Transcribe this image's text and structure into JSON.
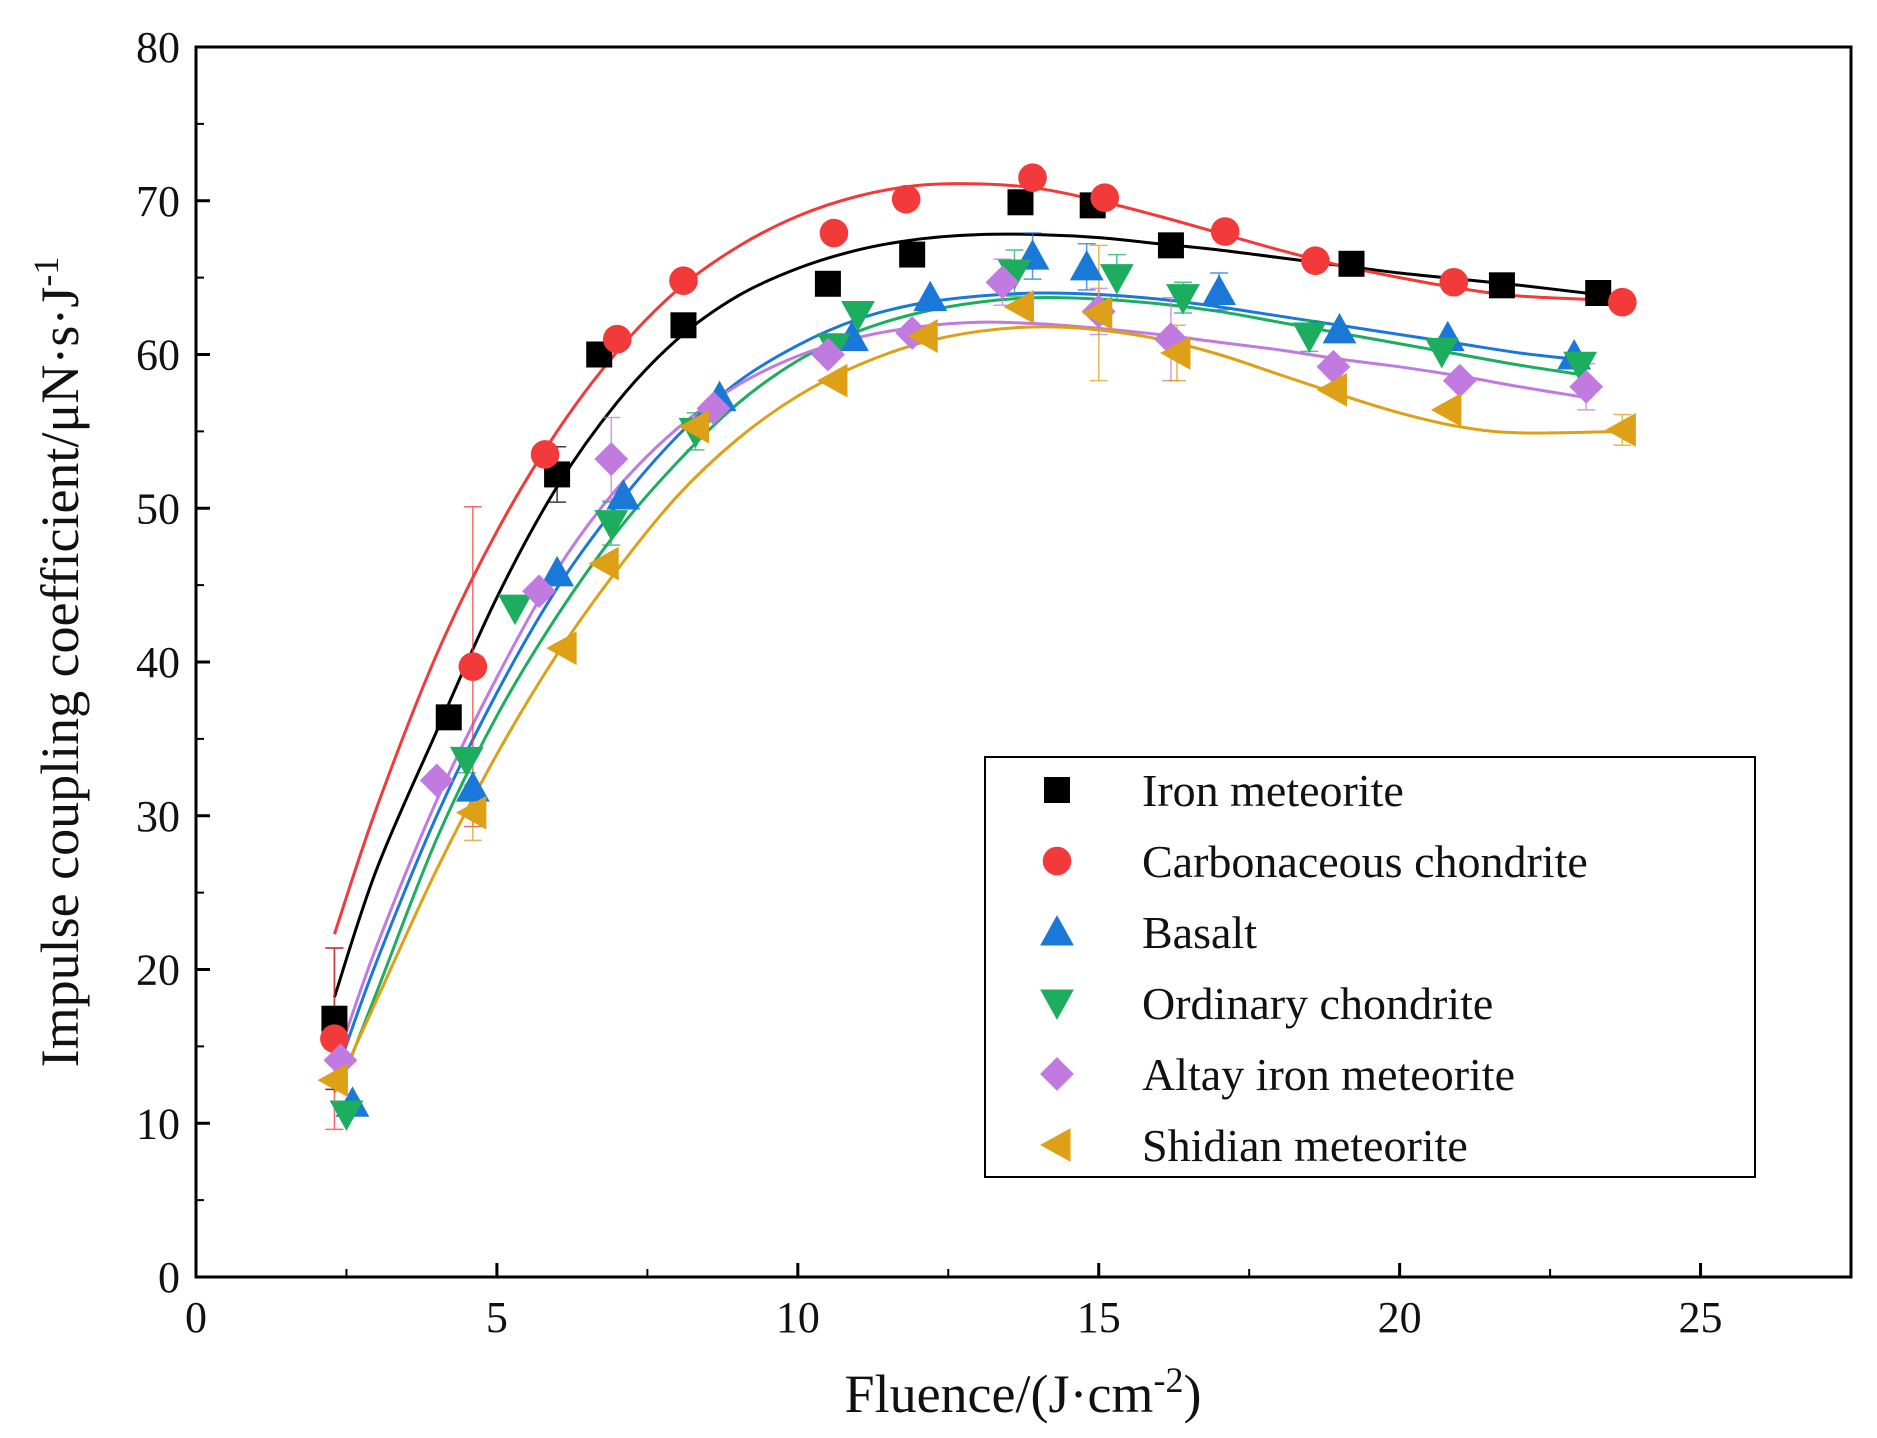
{
  "chart_data": {
    "type": "scatter",
    "title": "",
    "xlabel": "Fluence/(J·cm",
    "xlabel_sup": "-2",
    "xlabel_end": ")",
    "ylabel": "Impulse coupling coefficient/μN·s·J",
    "ylabel_sup": "-1",
    "xlim": [
      0,
      27.5
    ],
    "ylim": [
      0,
      80
    ],
    "xticks": [
      0,
      5,
      10,
      15,
      20,
      25
    ],
    "yticks": [
      0,
      10,
      20,
      30,
      40,
      50,
      60,
      70,
      80
    ],
    "legend_position": "bottom-right",
    "series": [
      {
        "name": "Iron meteorite",
        "color": "#000000",
        "marker": "square",
        "x": [
          2.3,
          4.2,
          6.0,
          6.7,
          8.1,
          10.5,
          11.9,
          13.7,
          14.9,
          16.2,
          19.2,
          21.7,
          23.3
        ],
        "y": [
          16.8,
          36.4,
          52.2,
          60.0,
          61.9,
          64.6,
          66.5,
          69.9,
          69.7,
          67.1,
          65.9,
          64.5,
          64.0
        ],
        "err": [
          4.6,
          0,
          1.8,
          0,
          0,
          0,
          0,
          0,
          0,
          0,
          0,
          0,
          0
        ],
        "fit": [
          [
            2.3,
            18.2
          ],
          [
            3,
            26.5
          ],
          [
            4,
            35.5
          ],
          [
            5,
            44.2
          ],
          [
            6,
            51.4
          ],
          [
            7,
            56.9
          ],
          [
            8,
            61.0
          ],
          [
            9,
            63.8
          ],
          [
            10,
            65.6
          ],
          [
            11,
            66.8
          ],
          [
            12,
            67.5
          ],
          [
            13,
            67.8
          ],
          [
            14,
            67.8
          ],
          [
            15,
            67.6
          ],
          [
            16,
            67.2
          ],
          [
            17,
            66.8
          ],
          [
            18,
            66.3
          ],
          [
            19,
            65.8
          ],
          [
            20,
            65.3
          ],
          [
            21,
            64.9
          ],
          [
            22,
            64.5
          ],
          [
            23.3,
            63.9
          ]
        ]
      },
      {
        "name": "Carbonaceous chondrite",
        "color": "#f23a3a",
        "marker": "circle",
        "x": [
          2.3,
          4.6,
          5.8,
          7.0,
          8.1,
          10.6,
          11.8,
          13.9,
          15.1,
          17.1,
          18.6,
          20.9,
          23.7
        ],
        "y": [
          15.5,
          39.7,
          53.5,
          61.0,
          64.8,
          67.9,
          70.1,
          71.5,
          70.2,
          68.0,
          66.1,
          64.7,
          63.4
        ],
        "err": [
          5.9,
          10.4,
          0,
          0,
          0,
          0,
          0,
          0,
          0,
          0,
          0,
          0,
          0
        ],
        "fit": [
          [
            2.3,
            22.3
          ],
          [
            3,
            30.5
          ],
          [
            4,
            40.5
          ],
          [
            5,
            48.5
          ],
          [
            6,
            55.0
          ],
          [
            7,
            60.2
          ],
          [
            8,
            64.2
          ],
          [
            9,
            67.0
          ],
          [
            10,
            69.0
          ],
          [
            11,
            70.3
          ],
          [
            12,
            71.0
          ],
          [
            13,
            71.1
          ],
          [
            14,
            70.8
          ],
          [
            15,
            70.0
          ],
          [
            16,
            69.0
          ],
          [
            17,
            67.9
          ],
          [
            18,
            66.8
          ],
          [
            19,
            65.8
          ],
          [
            20,
            65.0
          ],
          [
            21,
            64.3
          ],
          [
            22,
            63.8
          ],
          [
            23.7,
            63.5
          ]
        ]
      },
      {
        "name": "Basalt",
        "color": "#1a78d8",
        "marker": "triangle-up",
        "x": [
          2.6,
          4.6,
          6.0,
          7.1,
          8.7,
          10.9,
          12.2,
          13.9,
          14.8,
          17.0,
          19.0,
          20.8,
          22.9
        ],
        "y": [
          11.3,
          31.8,
          45.8,
          50.8,
          57.2,
          61.1,
          63.7,
          66.4,
          65.7,
          64.1,
          61.6,
          61.1,
          59.9
        ],
        "err": [
          0,
          0,
          0,
          0,
          0,
          0,
          0,
          1.5,
          1.5,
          1.2,
          0,
          0,
          0
        ],
        "fit": [
          [
            2.4,
            14.0
          ],
          [
            3,
            20.5
          ],
          [
            4,
            30.0
          ],
          [
            5,
            38.0
          ],
          [
            6,
            44.8
          ],
          [
            7,
            50.2
          ],
          [
            8,
            54.7
          ],
          [
            9,
            58.2
          ],
          [
            10,
            60.6
          ],
          [
            11,
            62.3
          ],
          [
            12,
            63.3
          ],
          [
            13,
            63.8
          ],
          [
            14,
            64.0
          ],
          [
            15,
            63.9
          ],
          [
            16,
            63.6
          ],
          [
            17,
            63.1
          ],
          [
            18,
            62.5
          ],
          [
            19,
            61.9
          ],
          [
            20,
            61.3
          ],
          [
            21,
            60.7
          ],
          [
            22,
            60.1
          ],
          [
            22.9,
            59.7
          ]
        ]
      },
      {
        "name": "Ordinary chondrite",
        "color": "#1cae5e",
        "marker": "triangle-down",
        "x": [
          2.5,
          4.5,
          5.3,
          6.9,
          8.3,
          10.6,
          11.0,
          13.6,
          15.3,
          16.4,
          18.5,
          20.7,
          23.0
        ],
        "y": [
          10.6,
          33.6,
          43.5,
          49.0,
          55.0,
          60.5,
          62.6,
          65.3,
          65.0,
          63.7,
          61.2,
          60.2,
          59.3
        ],
        "err": [
          0,
          0.8,
          0,
          1.4,
          1.2,
          0,
          0,
          1.5,
          1.5,
          1.0,
          1.0,
          0,
          0
        ],
        "fit": [
          [
            2.4,
            12.5
          ],
          [
            3,
            18.5
          ],
          [
            4,
            28.5
          ],
          [
            5,
            36.5
          ],
          [
            6,
            43.0
          ],
          [
            7,
            48.5
          ],
          [
            8,
            53.0
          ],
          [
            9,
            56.8
          ],
          [
            10,
            59.6
          ],
          [
            11,
            61.5
          ],
          [
            12,
            62.7
          ],
          [
            13,
            63.4
          ],
          [
            14,
            63.7
          ],
          [
            15,
            63.6
          ],
          [
            16,
            63.3
          ],
          [
            17,
            62.8
          ],
          [
            18,
            62.1
          ],
          [
            19,
            61.4
          ],
          [
            20,
            60.7
          ],
          [
            21,
            60.0
          ],
          [
            22,
            59.3
          ],
          [
            23.0,
            58.7
          ]
        ]
      },
      {
        "name": "Altay iron meteorite",
        "color": "#c17ae0",
        "marker": "diamond",
        "x": [
          2.4,
          4.0,
          5.7,
          6.9,
          8.6,
          10.5,
          11.9,
          13.4,
          15.0,
          16.2,
          18.9,
          21.0,
          23.1
        ],
        "y": [
          14.1,
          32.3,
          44.6,
          53.2,
          56.5,
          60.0,
          61.4,
          64.7,
          62.8,
          61.0,
          59.2,
          58.3,
          57.9
        ],
        "err": [
          0,
          0,
          0,
          2.7,
          0,
          0,
          0,
          1.5,
          1.5,
          2.7,
          0,
          0,
          1.5
        ],
        "fit": [
          [
            2.4,
            14.8
          ],
          [
            3,
            21.5
          ],
          [
            4,
            31.0
          ],
          [
            5,
            39.0
          ],
          [
            6,
            46.0
          ],
          [
            7,
            51.3
          ],
          [
            8,
            55.2
          ],
          [
            9,
            58.0
          ],
          [
            10,
            59.9
          ],
          [
            11,
            61.1
          ],
          [
            12,
            61.8
          ],
          [
            13,
            62.1
          ],
          [
            14,
            62.0
          ],
          [
            15,
            61.7
          ],
          [
            16,
            61.3
          ],
          [
            17,
            60.8
          ],
          [
            18,
            60.3
          ],
          [
            19,
            59.7
          ],
          [
            20,
            59.2
          ],
          [
            21,
            58.6
          ],
          [
            22,
            57.9
          ],
          [
            23.1,
            57.2
          ]
        ]
      },
      {
        "name": "Shidian meteorite",
        "color": "#dea017",
        "marker": "triangle-left",
        "x": [
          2.3,
          4.6,
          6.1,
          6.8,
          8.3,
          10.6,
          12.1,
          13.7,
          15.0,
          16.3,
          18.9,
          20.8,
          23.7
        ],
        "y": [
          12.8,
          30.2,
          40.9,
          46.4,
          55.3,
          58.3,
          61.2,
          63.1,
          62.7,
          60.1,
          57.7,
          56.4,
          55.1
        ],
        "err": [
          0,
          1.8,
          0,
          0,
          0,
          0,
          0,
          0,
          4.4,
          1.8,
          0,
          0,
          1.0
        ],
        "fit": [
          [
            2.3,
            12.0
          ],
          [
            3,
            18.0
          ],
          [
            4,
            26.5
          ],
          [
            5,
            34.0
          ],
          [
            6,
            40.5
          ],
          [
            7,
            46.0
          ],
          [
            8,
            50.8
          ],
          [
            9,
            54.5
          ],
          [
            10,
            57.3
          ],
          [
            11,
            59.3
          ],
          [
            12,
            60.7
          ],
          [
            13,
            61.5
          ],
          [
            14,
            61.8
          ],
          [
            15,
            61.6
          ],
          [
            16,
            61.0
          ],
          [
            17,
            60.0
          ],
          [
            18,
            58.7
          ],
          [
            19,
            57.4
          ],
          [
            20,
            56.2
          ],
          [
            21,
            55.3
          ],
          [
            22,
            54.9
          ],
          [
            23.7,
            55.0
          ]
        ]
      }
    ]
  }
}
